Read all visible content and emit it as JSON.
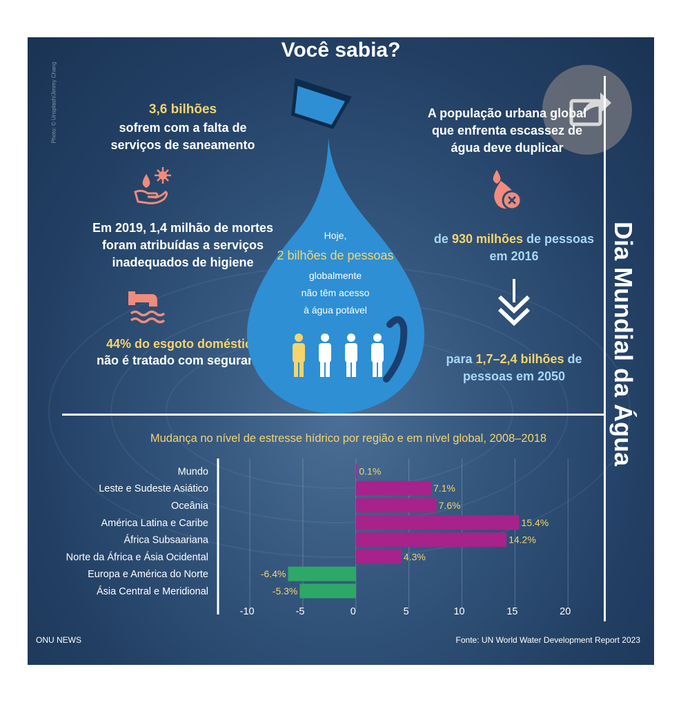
{
  "title": "Você sabia?",
  "vertical_title": "Dia Mundial da Água",
  "photo_credit": "Photo: © Unsplash/Jimmy Chang",
  "left": {
    "stat1_highlight": "3,6 bilhões",
    "stat1_line1": "sofrem com a falta de",
    "stat1_line2": "serviços de saneamento",
    "stat2_line1": "Em 2019, 1,4 milhão de mortes",
    "stat2_line2": "foram atribuídas a serviços",
    "stat2_line3": "inadequados de higiene",
    "stat3_highlight": "44% do esgoto doméstico",
    "stat3_line2": "não é tratado com segurança"
  },
  "center": {
    "line1": "Hoje,",
    "highlight": "2 bilhões de pessoas",
    "line3": "globalmente",
    "line4": "não têm acesso",
    "line5": "à água potável"
  },
  "right": {
    "line1": "A população urbana global",
    "line2": "que enfrenta escassez de",
    "line3": "água deve duplicar",
    "from_prefix": "de ",
    "from_highlight": "930 milhões",
    "from_suffix": " de pessoas",
    "from_year": "em 2016",
    "to_prefix": "para ",
    "to_highlight": "1,7–2,4 bilhões",
    "to_suffix": " de",
    "to_year": "pessoas em 2050"
  },
  "colors": {
    "positive": "#a8228b",
    "negative": "#2ea866",
    "highlight": "#f6d46b",
    "drop": "#2e8fd4",
    "icon": "#f28b7c"
  },
  "chart_data": {
    "type": "bar",
    "orientation": "horizontal",
    "title": "Mudança no nível de estresse hídrico por região e em nível global, 2008–2018",
    "categories": [
      "Mundo",
      "Leste e Sudeste Asiático",
      "Oceânia",
      "América Latina e Caribe",
      "África Subsaariana",
      "Norte da África e Ásia Ocidental",
      "Europa e América do Norte",
      "Ásia Central e Meridional"
    ],
    "values": [
      0.1,
      7.1,
      7.6,
      15.4,
      14.2,
      4.3,
      -6.4,
      -5.3
    ],
    "labels": [
      "0.1%",
      "7.1%",
      "7.6%",
      "15.4%",
      "14.2%",
      "4.3%",
      "-6.4%",
      "-5.3%"
    ],
    "xlim": [
      -13,
      22
    ],
    "xticks": [
      -10,
      -5,
      0,
      5,
      10,
      15,
      20
    ],
    "tick_labels": [
      "-10",
      "-5",
      "0",
      "5",
      "10",
      "15",
      "20"
    ],
    "grid": true
  },
  "footer": {
    "left": "ONU NEWS",
    "right": "Fonte: UN World Water Development Report 2023"
  }
}
